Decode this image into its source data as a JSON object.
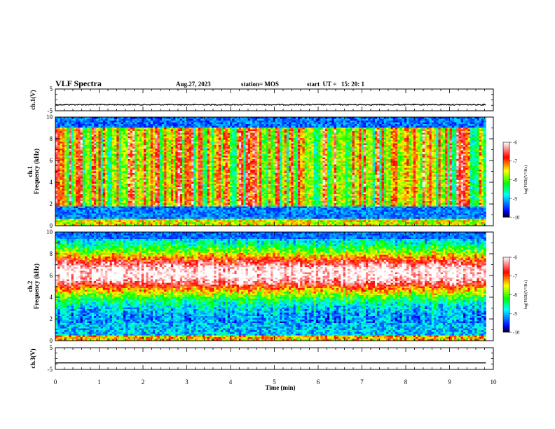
{
  "header": {
    "title": "VLF Spectra",
    "date": "Aug.27, 2023",
    "station": "station= MOS",
    "start_ut": "start  UT =   15: 20: 1"
  },
  "chart_data": [
    {
      "type": "line",
      "panel": "ch1-waveform",
      "ylabel": "ch.1(V)",
      "ylim": [
        -5,
        5
      ],
      "yticks": [
        "5",
        "-5"
      ],
      "xlim": [
        0,
        9.83
      ],
      "series": [
        {
          "value": -2.2
        }
      ]
    },
    {
      "type": "heatmap",
      "panel": "ch1-spectrogram",
      "ylabel": [
        "ch.1",
        "Frequency (kHz)"
      ],
      "ylim": [
        0,
        10
      ],
      "yticks": [
        "10",
        "8",
        "6",
        "4",
        "2",
        "0"
      ],
      "xlim": [
        0,
        9.83
      ],
      "colorbar": {
        "label": "log(PSD)(V²/Hz)",
        "range": [
          -10,
          -6
        ],
        "ticks": [
          "-6",
          "-7",
          "-8",
          "-9",
          "-10"
        ]
      }
    },
    {
      "type": "heatmap",
      "panel": "ch2-spectrogram",
      "ylabel": [
        "ch.2",
        "Frequency (kHz)"
      ],
      "ylim": [
        0,
        10
      ],
      "yticks": [
        "10",
        "8",
        "6",
        "4",
        "2",
        "0"
      ],
      "xlim": [
        0,
        9.83
      ],
      "colorbar": {
        "label": "log(PSD)(V²/Hz)",
        "range": [
          -10,
          -6
        ],
        "ticks": [
          "-6",
          "-7",
          "-8",
          "-9",
          "-10"
        ]
      }
    },
    {
      "type": "line",
      "panel": "ch3-waveform",
      "ylabel": "ch.3(V)",
      "ylim": [
        -5,
        5
      ],
      "yticks": [
        "5",
        "-5"
      ],
      "xlim": [
        0,
        9.83
      ],
      "series": [
        {
          "value": -2.0
        }
      ]
    }
  ],
  "x_axis": {
    "label": "Time (min)",
    "range": [
      0,
      10
    ],
    "ticks": [
      "0",
      "1",
      "2",
      "3",
      "4",
      "5",
      "6",
      "7",
      "8",
      "9",
      "10"
    ]
  }
}
